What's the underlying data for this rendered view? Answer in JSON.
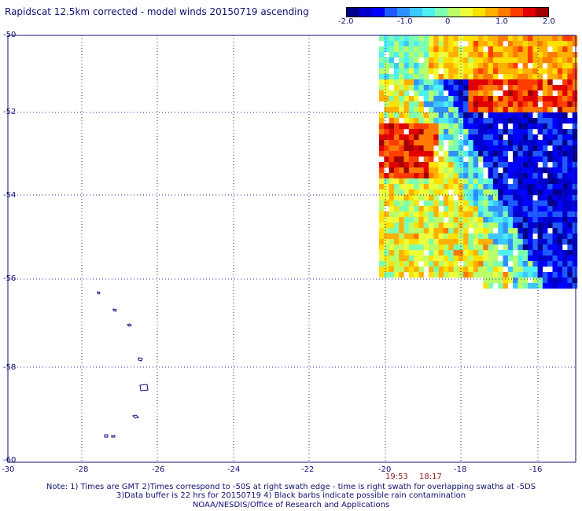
{
  "header": {
    "title": "Rapidscat 12.5km corrected - model winds 20150719 ascending"
  },
  "colorbar": {
    "ticks": [
      "-2.0",
      "-1.0",
      "0",
      "1.0",
      "2.0"
    ],
    "colors": [
      "#00008b",
      "#0000cd",
      "#0000ff",
      "#1e5aff",
      "#2f8fff",
      "#3cc8ff",
      "#4ff0f0",
      "#7cffb0",
      "#b8ff6a",
      "#ecff3a",
      "#ffe000",
      "#ffb000",
      "#ff7a00",
      "#ff3c00",
      "#e00000",
      "#a00000"
    ]
  },
  "axes": {
    "lat_labels": [
      "-50",
      "-52",
      "-54",
      "-56",
      "-58",
      "-60"
    ],
    "lon_labels": [
      "-30",
      "-28",
      "-26",
      "-24",
      "-22",
      "-20",
      "-18",
      "-16"
    ]
  },
  "times": {
    "t1": "19:53",
    "t2": "18:17"
  },
  "notes": {
    "line1": "Note: 1) Times are GMT 2)Times correspond to -50S at right swath edge - time is right swath for overlapping swaths at -5DS",
    "line2": "3)Data buffer is 22 hrs for 20150719 4) Black barbs indicate possible rain contamination",
    "line3": "NOAA/NESDIS/Office of Research and Applications"
  }
}
